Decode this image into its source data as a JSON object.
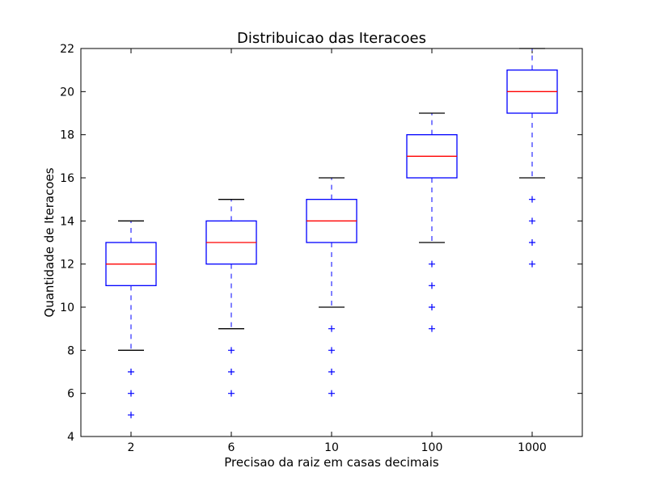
{
  "chart_data": {
    "type": "box",
    "title": "Distribuicao das Iteracoes",
    "xlabel": "Precisao da raiz em casas decimais",
    "ylabel": "Quantidade de Iteracoes",
    "ylim": [
      4,
      22
    ],
    "yticks": [
      4,
      6,
      8,
      10,
      12,
      14,
      16,
      18,
      20,
      22
    ],
    "categories": [
      "2",
      "6",
      "10",
      "100",
      "1000"
    ],
    "boxes": [
      {
        "q1": 11,
        "median": 12,
        "q3": 13,
        "whisker_low": 8,
        "whisker_high": 14,
        "outliers": [
          7,
          6,
          5
        ]
      },
      {
        "q1": 12,
        "median": 13,
        "q3": 14,
        "whisker_low": 9,
        "whisker_high": 15,
        "outliers": [
          8,
          7,
          6
        ]
      },
      {
        "q1": 13,
        "median": 14,
        "q3": 15,
        "whisker_low": 10,
        "whisker_high": 16,
        "outliers": [
          9,
          8,
          7,
          6
        ]
      },
      {
        "q1": 16,
        "median": 17,
        "q3": 18,
        "whisker_low": 13,
        "whisker_high": 19,
        "outliers": [
          12,
          11,
          10,
          9
        ]
      },
      {
        "q1": 19,
        "median": 20,
        "q3": 21,
        "whisker_low": 16,
        "whisker_high": 22,
        "outliers": [
          15,
          14,
          13,
          12
        ]
      }
    ],
    "grid": false,
    "colors": {
      "box": "#0000ff",
      "median": "#ff0000",
      "whisker_cap": "#000000",
      "outlier": "#0000ff",
      "axes": "#000000"
    }
  }
}
